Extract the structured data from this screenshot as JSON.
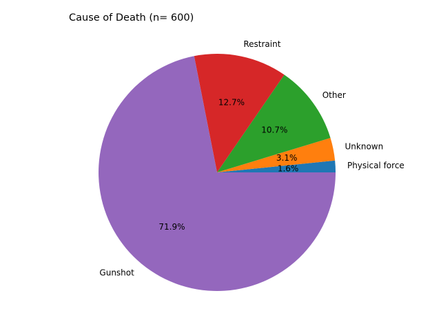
{
  "chart_data": {
    "type": "pie",
    "title": "Cause of Death (n= 600)",
    "start_angle_deg": 0,
    "direction": "counterclockwise",
    "slices": [
      {
        "label": "Physical force",
        "value": 1.6,
        "pct_text": "1.6%",
        "color": "#1f77b4"
      },
      {
        "label": "Unknown",
        "value": 3.1,
        "pct_text": "3.1%",
        "color": "#ff7f0e"
      },
      {
        "label": "Other",
        "value": 10.7,
        "pct_text": "10.7%",
        "color": "#2ca02c"
      },
      {
        "label": "Restraint",
        "value": 12.7,
        "pct_text": "12.7%",
        "color": "#d62728"
      },
      {
        "label": "Gunshot",
        "value": 71.9,
        "pct_text": "71.9%",
        "color": "#9467bd"
      }
    ]
  }
}
